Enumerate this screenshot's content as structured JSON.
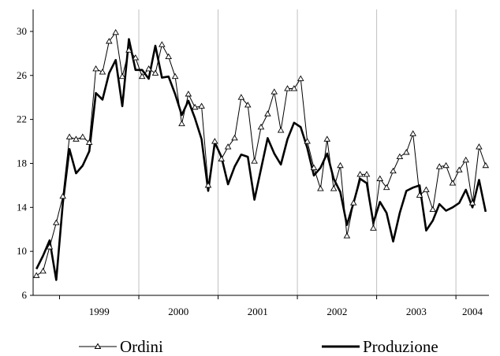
{
  "chart_data": {
    "type": "line",
    "title": "",
    "xlabel": "",
    "ylabel": "",
    "ylim": [
      6,
      32
    ],
    "yticks": [
      6,
      10,
      14,
      18,
      22,
      26,
      30
    ],
    "x_year_labels": [
      "1999",
      "2000",
      "2001",
      "2002",
      "2003",
      "2004"
    ],
    "x_start": "1998-09",
    "grid": "vertical lines at year boundaries",
    "legend_position": "bottom",
    "colors": {
      "axis": "#000000",
      "grid": "#c0c0c0",
      "ordini": "#000000",
      "produzione": "#000000"
    },
    "series": [
      {
        "name": "Ordini",
        "marker": "triangle",
        "values": [
          7.8,
          8.2,
          10.4,
          12.6,
          15.0,
          20.4,
          20.2,
          20.4,
          19.9,
          26.6,
          26.3,
          29.1,
          29.9,
          25.9,
          28.3,
          27.6,
          25.9,
          26.6,
          26.2,
          28.8,
          27.7,
          25.9,
          21.6,
          24.3,
          23.1,
          23.2,
          16.0,
          20.0,
          18.4,
          19.5,
          20.3,
          24.0,
          23.3,
          18.2,
          21.3,
          22.5,
          24.5,
          21.0,
          24.8,
          24.8,
          25.7,
          20.0,
          17.6,
          15.7,
          20.2,
          15.7,
          17.8,
          11.4,
          14.4,
          17.0,
          17.0,
          12.1,
          16.6,
          15.8,
          17.3,
          18.6,
          19.0,
          20.7,
          15.1,
          15.6,
          13.8,
          17.7,
          17.8,
          16.2,
          17.4,
          18.3,
          14.4,
          19.5,
          17.8
        ]
      },
      {
        "name": "Produzione",
        "marker": "none",
        "values": [
          8.4,
          9.6,
          11.0,
          7.4,
          14.4,
          19.3,
          17.1,
          17.8,
          19.1,
          24.4,
          23.8,
          26.2,
          27.4,
          23.2,
          29.3,
          26.5,
          26.5,
          25.7,
          28.7,
          25.8,
          25.9,
          24.3,
          22.4,
          23.7,
          22.1,
          20.2,
          15.5,
          19.9,
          18.6,
          16.1,
          17.7,
          18.8,
          18.6,
          14.7,
          17.5,
          20.3,
          18.9,
          17.9,
          20.2,
          21.7,
          21.3,
          19.4,
          16.9,
          17.6,
          18.9,
          16.6,
          15.4,
          12.4,
          14.4,
          16.6,
          16.2,
          12.6,
          14.5,
          13.5,
          10.9,
          13.5,
          15.5,
          15.8,
          16.0,
          11.9,
          12.8,
          14.3,
          13.7,
          14.0,
          14.4,
          15.6,
          14.0,
          16.5,
          13.6
        ]
      }
    ]
  }
}
